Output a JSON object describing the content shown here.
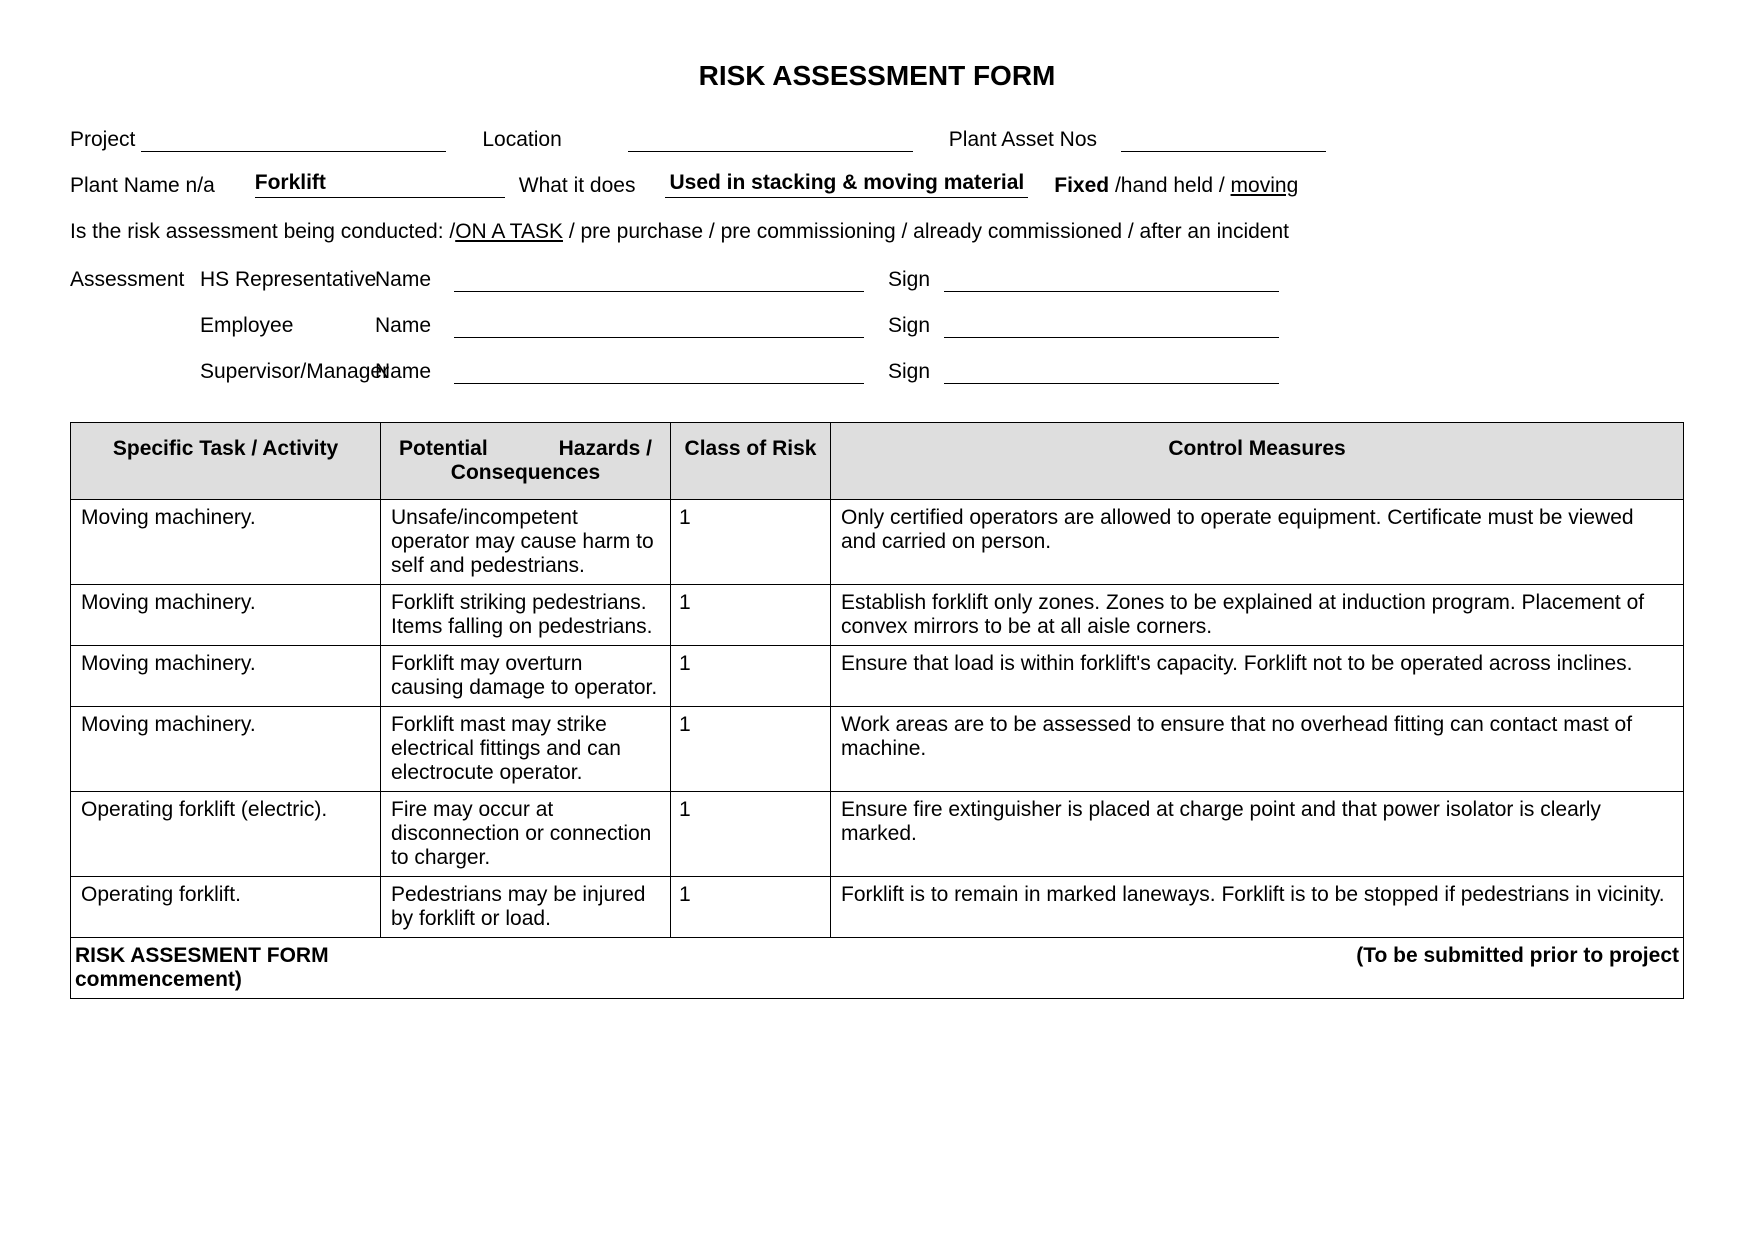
{
  "title": "RISK ASSESSMENT FORM",
  "header": {
    "project_label": "Project",
    "location_label": "Location",
    "plant_asset_nos_label": "Plant Asset Nos",
    "plant_name_label": "Plant Name n/a",
    "plant_name_value": "Forklift",
    "what_it_does_label": "What it does",
    "what_it_does_value": "Used in stacking & moving material",
    "usage_fixed": "Fixed",
    "usage_mid": " /hand held / ",
    "usage_moving": "moving",
    "conducted_prefix": "Is the risk assessment being conducted: /",
    "conducted_selected": "ON A TASK",
    "conducted_suffix": " / pre purchase / pre commissioning / already commissioned / after an incident",
    "assessment_label": "Assessment",
    "roles": {
      "hs_rep": "HS Representative",
      "employee": "Employee",
      "supervisor": "Supervisor/Manager"
    },
    "name_label": "Name",
    "sign_label": "Sign"
  },
  "table": {
    "headers": {
      "task": "Specific Task / Activity",
      "hazards_line1": "Potential",
      "hazards_line1b": "Hazards /",
      "hazards_line2": "Consequences",
      "risk": "Class of Risk",
      "control": "Control Measures"
    },
    "rows": [
      {
        "task": "Moving machinery.",
        "hazard": "Unsafe/incompetent operator may cause harm to self and pedestrians.",
        "risk": "1",
        "control": "Only certified operators are allowed to operate equipment.  Certificate must be viewed and carried on person."
      },
      {
        "task": "Moving machinery.",
        "hazard": "Forklift striking pedestrians.  Items falling on pedestrians.",
        "risk": "1",
        "control": "Establish forklift only zones.  Zones to be explained at induction program.  Placement of convex mirrors to be at all aisle corners."
      },
      {
        "task": "Moving machinery.",
        "hazard": "Forklift may overturn causing damage to operator.",
        "risk": "1",
        "control": "Ensure that load is within forklift's capacity.  Forklift not to be operated across inclines."
      },
      {
        "task": "Moving machinery.",
        "hazard": "Forklift mast may strike electrical fittings and can electrocute operator.",
        "risk": "1",
        "control": "Work areas are to be assessed to ensure that no overhead fitting can contact mast of machine."
      },
      {
        "task": "Operating forklift (electric).",
        "hazard": "Fire may occur at disconnection or connection to charger.",
        "risk": "1",
        "control": "Ensure fire extinguisher is placed at charge point and that power isolator is clearly marked."
      },
      {
        "task": "Operating forklift.",
        "hazard": "Pedestrians may be injured by forklift or load.",
        "risk": "1",
        "control": "Forklift is to remain in marked laneways.  Forklift is to be stopped if pedestrians in vicinity."
      }
    ],
    "footer_left": "RISK ASSESMENT FORM",
    "footer_right": "(To be submitted prior to project",
    "footer_bottom": "commencement)"
  },
  "colors": {
    "header_bg": "#dedede",
    "border": "#000000",
    "text": "#000000",
    "bg": "#ffffff"
  }
}
